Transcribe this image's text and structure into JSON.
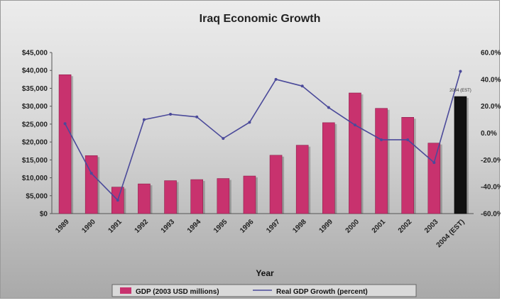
{
  "chart_data": {
    "type": "bar",
    "title": "Iraq Economic Growth",
    "xlabel": "Year",
    "ylabel": "",
    "y2label": "",
    "categories": [
      "1989",
      "1990",
      "1991",
      "1992",
      "1993",
      "1994",
      "1995",
      "1996",
      "1997",
      "1998",
      "1999",
      "2000",
      "2001",
      "2002",
      "2003",
      "2004 (EST)"
    ],
    "ylim": [
      0,
      45000
    ],
    "y_ticks": [
      "$0",
      "$5,000",
      "$10,000",
      "$15,000",
      "$20,000",
      "$25,000",
      "$30,000",
      "$35,000",
      "$40,000",
      "$45,000"
    ],
    "y2lim": [
      -60,
      60
    ],
    "y2_ticks": [
      "-60.0%",
      "-40.0%",
      "-20.0%",
      "0.0%",
      "20.0%",
      "40.0%",
      "60.0%"
    ],
    "legend_position": "bottom",
    "grid": false,
    "series": [
      {
        "name": "GDP (2003 USD millions)",
        "kind": "bar",
        "axis": "left",
        "color": "#c8326e",
        "highlight_last_color": "#111111",
        "values": [
          38800,
          16200,
          7400,
          8300,
          9200,
          9500,
          9800,
          10500,
          16300,
          19100,
          25400,
          33700,
          29400,
          26900,
          19700,
          32700
        ]
      },
      {
        "name": "Real GDP Growth (percent)",
        "kind": "line",
        "axis": "right",
        "color": "#4b4a9a",
        "values": [
          7,
          -30,
          -50,
          10,
          14,
          12,
          -4,
          8,
          40,
          35,
          19,
          6,
          -5,
          -5,
          -22,
          46
        ]
      }
    ],
    "annotations": [
      {
        "text": "2004 (EST)",
        "category": "2004 (EST)"
      }
    ]
  }
}
